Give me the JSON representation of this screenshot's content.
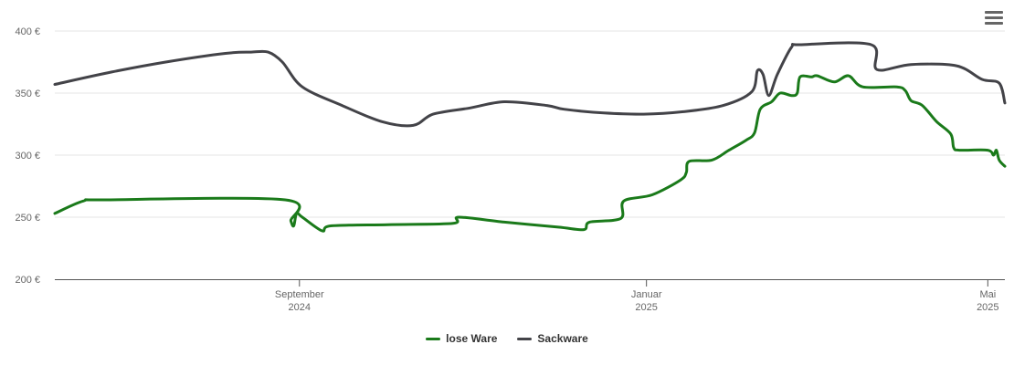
{
  "chart_data": {
    "type": "line",
    "title": "",
    "xlabel": "",
    "ylabel": "",
    "ylim": [
      200,
      400
    ],
    "y_ticks": [
      {
        "value": 200,
        "label": "200 €"
      },
      {
        "value": 250,
        "label": "250 €"
      },
      {
        "value": 300,
        "label": "300 €"
      },
      {
        "value": 350,
        "label": "350 €"
      },
      {
        "value": 400,
        "label": "400 €"
      }
    ],
    "xlim": [
      "2024-06-07",
      "2025-05-07"
    ],
    "x_ticks": [
      {
        "date": "2024-09-01",
        "month": "September",
        "year": "2024"
      },
      {
        "date": "2025-01-01",
        "month": "Januar",
        "year": "2025"
      },
      {
        "date": "2025-05-01",
        "month": "Mai",
        "year": "2025"
      }
    ],
    "grid": "horizontal",
    "legend_position": "bottom-center",
    "series": [
      {
        "name": "lose Ware",
        "color": "#1a7a1a",
        "points": [
          [
            "2024-06-07",
            253
          ],
          [
            "2024-06-17",
            263
          ],
          [
            "2024-06-25",
            264
          ],
          [
            "2024-08-27",
            264
          ],
          [
            "2024-08-29",
            247
          ],
          [
            "2024-08-30",
            243
          ],
          [
            "2024-08-31",
            253
          ],
          [
            "2024-09-02",
            250
          ],
          [
            "2024-09-09",
            239
          ],
          [
            "2024-09-12",
            243
          ],
          [
            "2024-10-02",
            244
          ],
          [
            "2024-10-25",
            245
          ],
          [
            "2024-10-27",
            250
          ],
          [
            "2024-11-12",
            246
          ],
          [
            "2024-12-01",
            242
          ],
          [
            "2024-12-10",
            240
          ],
          [
            "2024-12-12",
            246
          ],
          [
            "2024-12-23",
            249
          ],
          [
            "2024-12-24",
            263
          ],
          [
            "2025-01-03",
            268
          ],
          [
            "2025-01-13",
            280
          ],
          [
            "2025-01-15",
            286
          ],
          [
            "2025-01-16",
            295
          ],
          [
            "2025-01-24",
            296
          ],
          [
            "2025-01-30",
            304
          ],
          [
            "2025-02-05",
            312
          ],
          [
            "2025-02-08",
            318
          ],
          [
            "2025-02-10",
            337
          ],
          [
            "2025-02-14",
            343
          ],
          [
            "2025-02-17",
            350
          ],
          [
            "2025-02-21",
            348
          ],
          [
            "2025-02-23",
            350
          ],
          [
            "2025-02-24",
            363
          ],
          [
            "2025-02-28",
            363
          ],
          [
            "2025-03-02",
            364
          ],
          [
            "2025-03-08",
            359
          ],
          [
            "2025-03-13",
            364
          ],
          [
            "2025-03-18",
            355
          ],
          [
            "2025-03-30",
            355
          ],
          [
            "2025-04-02",
            352
          ],
          [
            "2025-04-04",
            344
          ],
          [
            "2025-04-08",
            340
          ],
          [
            "2025-04-13",
            327
          ],
          [
            "2025-04-18",
            317
          ],
          [
            "2025-04-19",
            306
          ],
          [
            "2025-04-21",
            304
          ],
          [
            "2025-05-01",
            304
          ],
          [
            "2025-05-03",
            300
          ],
          [
            "2025-05-04",
            304
          ],
          [
            "2025-05-05",
            296
          ],
          [
            "2025-05-07",
            291
          ]
        ]
      },
      {
        "name": "Sackware",
        "color": "#434348",
        "points": [
          [
            "2024-06-07",
            357
          ],
          [
            "2024-06-27",
            367
          ],
          [
            "2024-07-16",
            375
          ],
          [
            "2024-08-06",
            382
          ],
          [
            "2024-08-15",
            383
          ],
          [
            "2024-08-21",
            383
          ],
          [
            "2024-08-26",
            375
          ],
          [
            "2024-09-02",
            355
          ],
          [
            "2024-09-16",
            340
          ],
          [
            "2024-09-30",
            327
          ],
          [
            "2024-10-11",
            324
          ],
          [
            "2024-10-18",
            333
          ],
          [
            "2024-10-31",
            338
          ],
          [
            "2024-11-12",
            343
          ],
          [
            "2024-11-27",
            340
          ],
          [
            "2024-12-03",
            337
          ],
          [
            "2024-12-17",
            334
          ],
          [
            "2024-12-31",
            333
          ],
          [
            "2025-01-14",
            335
          ],
          [
            "2025-01-28",
            340
          ],
          [
            "2025-02-07",
            351
          ],
          [
            "2025-02-09",
            368
          ],
          [
            "2025-02-11",
            365
          ],
          [
            "2025-02-13",
            348
          ],
          [
            "2025-02-16",
            365
          ],
          [
            "2025-02-21",
            387
          ],
          [
            "2025-02-24",
            389
          ],
          [
            "2025-03-21",
            389
          ],
          [
            "2025-03-23",
            369
          ],
          [
            "2025-04-04",
            373
          ],
          [
            "2025-04-20",
            372
          ],
          [
            "2025-04-29",
            361
          ],
          [
            "2025-05-05",
            358
          ],
          [
            "2025-05-07",
            342
          ]
        ]
      }
    ]
  },
  "ui": {
    "menu_icon": "hamburger-menu-icon"
  }
}
